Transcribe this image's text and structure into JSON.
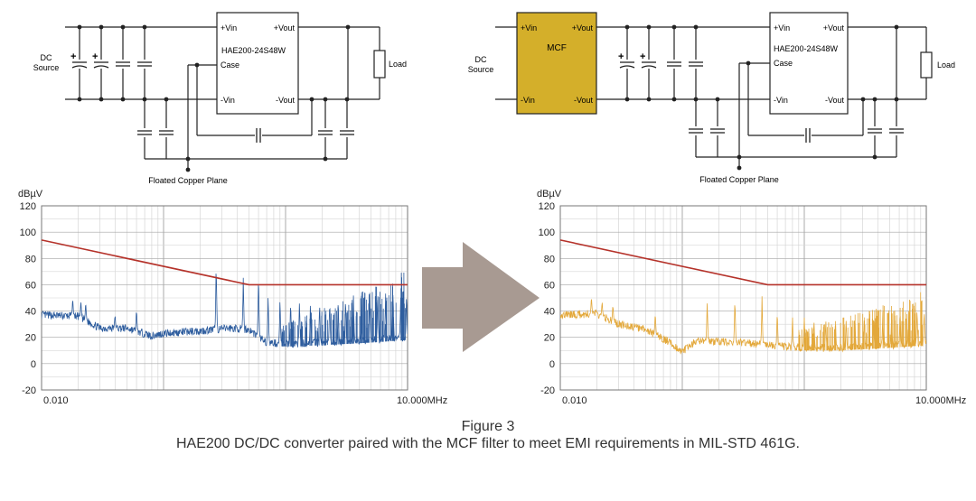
{
  "figure": {
    "title": "Figure 3",
    "caption": "HAE200 DC/DC converter paired with the MCF filter to meet EMI requirements in MIL-STD 461G."
  },
  "circuits": [
    {
      "id": "left",
      "source_label_1": "DC",
      "source_label_2": "Source",
      "converter_name": "HAE200-24S48W",
      "pin_vin_pos": "+Vin",
      "pin_vout_pos": "+Vout",
      "pin_case": "Case",
      "pin_vin_neg": "-Vin",
      "pin_vout_neg": "-Vout",
      "load_label": "Load",
      "plane_label": "Floated Copper Plane",
      "plus_sign": "+"
    },
    {
      "id": "right",
      "source_label_1": "DC",
      "source_label_2": "Source",
      "filter_name": "MCF",
      "filter_vin_pos": "+Vin",
      "filter_vout_pos": "+Vout",
      "filter_vin_neg": "-Vin",
      "filter_vout_neg": "-Vout",
      "filter_color": "#d4af2a",
      "converter_name": "HAE200-24S48W",
      "pin_vin_pos": "+Vin",
      "pin_vout_pos": "+Vout",
      "pin_case": "Case",
      "pin_vin_neg": "-Vin",
      "pin_vout_neg": "-Vout",
      "load_label": "Load",
      "plane_label": "Floated Copper Plane",
      "plus_sign": "+"
    }
  ],
  "arrow_color": "#a89a92",
  "chart_data": [
    {
      "type": "line",
      "xscale": "log",
      "ylabel": "dBµV",
      "ylim": [
        -20,
        120
      ],
      "yticks": [
        "120",
        "100",
        "80",
        "60",
        "40",
        "20",
        "0",
        "-20"
      ],
      "xtick_left": "0.010",
      "xtick_right": "10.000MHz",
      "xlim_mhz": [
        0.01,
        10
      ],
      "grid": true,
      "series": [
        {
          "role": "limit",
          "color": "#b5322a",
          "points": [
            [
              0.01,
              94
            ],
            [
              0.5,
              60
            ],
            [
              10,
              60
            ]
          ]
        },
        {
          "role": "emission",
          "color": "#2e5d9e",
          "base": [
            [
              0.01,
              37
            ],
            [
              0.02,
              36
            ],
            [
              0.03,
              27
            ],
            [
              0.05,
              27
            ],
            [
              0.08,
              21
            ],
            [
              0.1,
              23
            ],
            [
              0.2,
              25
            ],
            [
              0.35,
              27
            ],
            [
              0.5,
              26
            ],
            [
              0.7,
              16
            ],
            [
              1,
              15
            ],
            [
              2,
              16
            ],
            [
              5,
              18
            ],
            [
              10,
              20
            ]
          ],
          "peaks": [
            [
              0.018,
              51
            ],
            [
              0.021,
              49
            ],
            [
              0.023,
              48
            ],
            [
              0.04,
              38
            ],
            [
              0.06,
              43
            ],
            [
              0.27,
              80
            ],
            [
              0.45,
              66
            ],
            [
              0.6,
              72
            ],
            [
              0.72,
              54
            ],
            [
              0.9,
              52
            ],
            [
              1.1,
              50
            ],
            [
              1.3,
              49
            ],
            [
              1.6,
              48
            ],
            [
              1.9,
              49
            ],
            [
              2.3,
              50
            ],
            [
              2.7,
              52
            ],
            [
              3.1,
              53
            ],
            [
              3.6,
              54
            ],
            [
              4.2,
              55
            ],
            [
              4.9,
              55
            ],
            [
              5.7,
              56
            ],
            [
              6.6,
              56
            ],
            [
              7.6,
              57
            ],
            [
              8.8,
              57
            ],
            [
              9.8,
              56
            ]
          ]
        }
      ]
    },
    {
      "type": "line",
      "xscale": "log",
      "ylabel": "dBµV",
      "ylim": [
        -20,
        120
      ],
      "yticks": [
        "120",
        "100",
        "80",
        "60",
        "40",
        "20",
        "0",
        "-20"
      ],
      "xtick_left": "0.010",
      "xtick_right": "10.000MHz",
      "xlim_mhz": [
        0.01,
        10
      ],
      "grid": true,
      "series": [
        {
          "role": "limit",
          "color": "#b5322a",
          "points": [
            [
              0.01,
              94
            ],
            [
              0.5,
              60
            ],
            [
              10,
              60
            ]
          ]
        },
        {
          "role": "emission",
          "color": "#e3a83a",
          "base": [
            [
              0.01,
              37
            ],
            [
              0.02,
              38
            ],
            [
              0.03,
              30
            ],
            [
              0.05,
              26
            ],
            [
              0.08,
              16
            ],
            [
              0.1,
              9
            ],
            [
              0.13,
              17
            ],
            [
              0.2,
              17
            ],
            [
              0.3,
              16
            ],
            [
              0.5,
              14
            ],
            [
              1,
              12
            ],
            [
              2,
              12
            ],
            [
              5,
              14
            ],
            [
              10,
              16
            ]
          ],
          "peaks": [
            [
              0.018,
              52
            ],
            [
              0.022,
              48
            ],
            [
              0.027,
              46
            ],
            [
              0.06,
              40
            ],
            [
              0.16,
              50
            ],
            [
              0.27,
              52
            ],
            [
              0.45,
              52
            ],
            [
              0.6,
              42
            ],
            [
              0.8,
              36
            ],
            [
              1.0,
              35
            ],
            [
              1.2,
              34
            ],
            [
              1.5,
              34
            ],
            [
              1.8,
              35
            ],
            [
              2.2,
              36
            ],
            [
              2.6,
              37
            ],
            [
              3.1,
              38
            ],
            [
              3.7,
              39
            ],
            [
              4.4,
              40
            ],
            [
              5.2,
              41
            ],
            [
              6.1,
              42
            ],
            [
              7.2,
              43
            ],
            [
              8.4,
              43
            ],
            [
              9.6,
              42
            ]
          ]
        }
      ]
    }
  ]
}
